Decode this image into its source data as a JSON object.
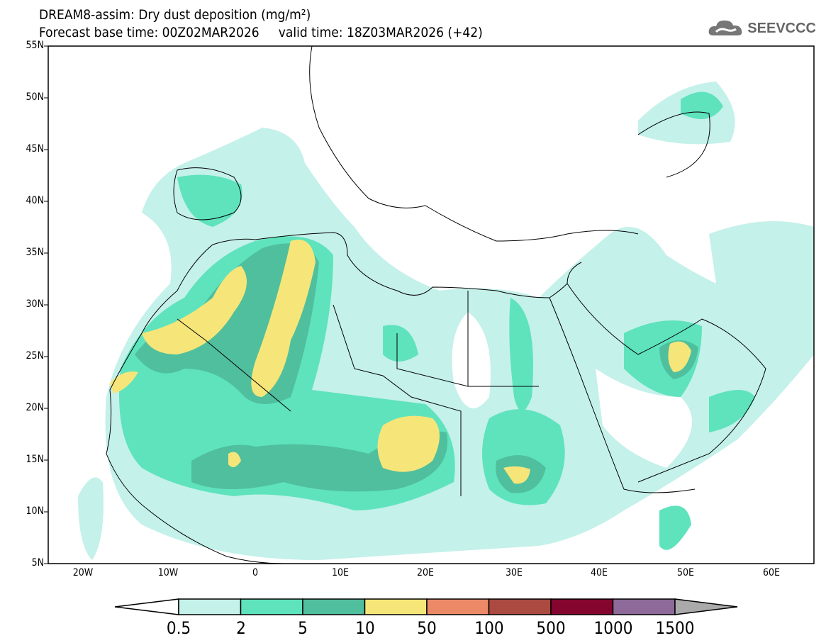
{
  "title": {
    "line1": "DREAM8-assim: Dry dust deposition (mg/m²)",
    "line2": "Forecast base time: 00Z02MAR2026     valid time: 18Z03MAR2026 (+42)"
  },
  "logo": {
    "text": "SEEVCCC",
    "icon": "cloud-icon"
  },
  "map": {
    "lon_range": [
      -25,
      65
    ],
    "lat_range": [
      5,
      55
    ],
    "lat_labels": [
      "55N",
      "50N",
      "45N",
      "40N",
      "35N",
      "30N",
      "25N",
      "20N",
      "15N",
      "10N",
      "5N"
    ],
    "lon_labels": [
      "20W",
      "10W",
      "0",
      "10E",
      "20E",
      "30E",
      "40E",
      "50E",
      "60E"
    ]
  },
  "colorbar": {
    "labels": [
      "0.5",
      "2",
      "5",
      "10",
      "50",
      "100",
      "500",
      "1000",
      "1500"
    ],
    "colors": [
      "#c4f1ea",
      "#5ee3bd",
      "#50bf9e",
      "#f6e679",
      "#ec8a68",
      "#ab4a40",
      "#84062e",
      "#8d6a99"
    ],
    "under_color": "#ffffff",
    "over_color": "#aaaaaa"
  }
}
